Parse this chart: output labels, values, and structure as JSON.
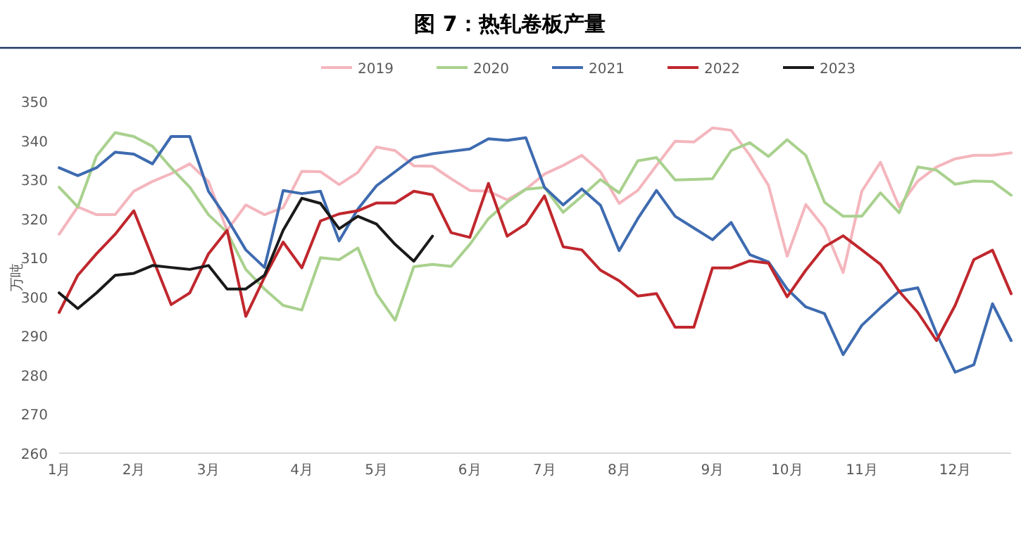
{
  "chart_data": {
    "type": "line",
    "title": "图 7：热轧卷板产量",
    "ylabel": "万吨",
    "categories": [
      "1月",
      null,
      null,
      null,
      "2月",
      null,
      null,
      null,
      "3月",
      null,
      null,
      null,
      null,
      "4月",
      null,
      null,
      null,
      "5月",
      null,
      null,
      null,
      null,
      "6月",
      null,
      null,
      null,
      "7月",
      null,
      null,
      null,
      "8月",
      null,
      null,
      null,
      null,
      "9月",
      null,
      null,
      null,
      "10月",
      null,
      null,
      null,
      "11月",
      null,
      null,
      null,
      null,
      "12月",
      null,
      null,
      null
    ],
    "ylim": [
      260,
      350
    ],
    "yticks": [
      260,
      270,
      280,
      290,
      300,
      310,
      320,
      330,
      340,
      350
    ],
    "legend": "top",
    "marker": "none",
    "line_style": "solid",
    "series": [
      {
        "name": "2019",
        "color": "#f4b6bd",
        "values": [
          316,
          323,
          321,
          321,
          327,
          329.5,
          331.5,
          334,
          329.5,
          317,
          323.5,
          321,
          322.8,
          332.1,
          332,
          328.7,
          331.8,
          338.3,
          337.4,
          333.5,
          333.4,
          330.2,
          327.2,
          327,
          324.8,
          327.5,
          331.4,
          333.6,
          336.2,
          332,
          323.9,
          327.2,
          333.6,
          339.8,
          339.6,
          343.2,
          342.6,
          336.2,
          328.5,
          310.4,
          323.6,
          317.6,
          306.2,
          327,
          334.4,
          323,
          329.6,
          333.2,
          335.3,
          336.2,
          336.2,
          336.8
        ]
      },
      {
        "name": "2020",
        "color": "#a9d18e",
        "values": [
          328,
          323,
          336,
          342,
          341,
          338.5,
          333,
          328,
          321,
          316.5,
          307,
          302,
          297.8,
          296.6,
          310,
          309.5,
          312.5,
          300.8,
          294,
          307.7,
          308.3,
          307.8,
          313.4,
          320,
          324.2,
          327.5,
          328,
          321.6,
          325.7,
          330,
          326.6,
          334.8,
          335.6,
          329.9,
          330,
          330.2,
          337.4,
          339.4,
          335.9,
          340.2,
          336.2,
          324.2,
          320.6,
          320.6,
          326.6,
          321.5,
          333.2,
          332.4,
          328.8,
          329.6,
          329.5,
          326
        ]
      },
      {
        "name": "2021",
        "color": "#3e6bb0",
        "values": [
          333,
          331,
          333,
          337,
          336.5,
          334,
          341,
          341,
          327,
          320,
          312,
          307.5,
          327.2,
          326.4,
          327,
          314.3,
          322.4,
          328.4,
          332,
          335.6,
          336.6,
          337.2,
          337.8,
          340.4,
          340,
          340.7,
          328,
          323.5,
          327.6,
          323.4,
          311.8,
          320,
          327.2,
          320.6,
          317.6,
          314.6,
          319,
          310.8,
          308.9,
          302,
          297.4,
          295.7,
          285.2,
          292.7,
          297.2,
          301.4,
          302.3,
          290.6,
          280.7,
          282.6,
          298.2,
          288.8
        ]
      },
      {
        "name": "2022",
        "color": "#c0272d",
        "values": [
          296,
          305.5,
          311,
          316,
          322,
          310,
          298,
          301,
          311,
          317,
          295,
          305,
          314,
          307.4,
          319.4,
          321.2,
          322,
          324,
          324,
          327,
          326.1,
          316.4,
          315.2,
          329,
          315.5,
          318.6,
          325.8,
          312.8,
          312,
          306.8,
          304.1,
          300.2,
          300.8,
          292.2,
          292.2,
          307.4,
          307.4,
          309.2,
          308.6,
          300,
          306.8,
          312.8,
          315.6,
          312,
          308.3,
          301.4,
          296,
          288.8,
          297.8,
          309.5,
          311.9,
          300.8
        ]
      },
      {
        "name": "2023",
        "color": "#1a1a1a",
        "values": [
          301,
          297,
          301,
          305.5,
          306,
          308,
          307.5,
          307,
          308,
          302,
          302,
          305.5,
          317,
          325.2,
          323.9,
          317.4,
          320.6,
          318.6,
          313.4,
          309.1,
          315.5,
          null,
          null,
          null,
          null,
          null,
          null,
          null,
          null,
          null,
          null,
          null,
          null,
          null,
          null,
          null,
          null,
          null,
          null,
          null,
          null,
          null,
          null,
          null,
          null,
          null,
          null,
          null,
          null,
          null,
          null,
          null
        ]
      }
    ]
  }
}
